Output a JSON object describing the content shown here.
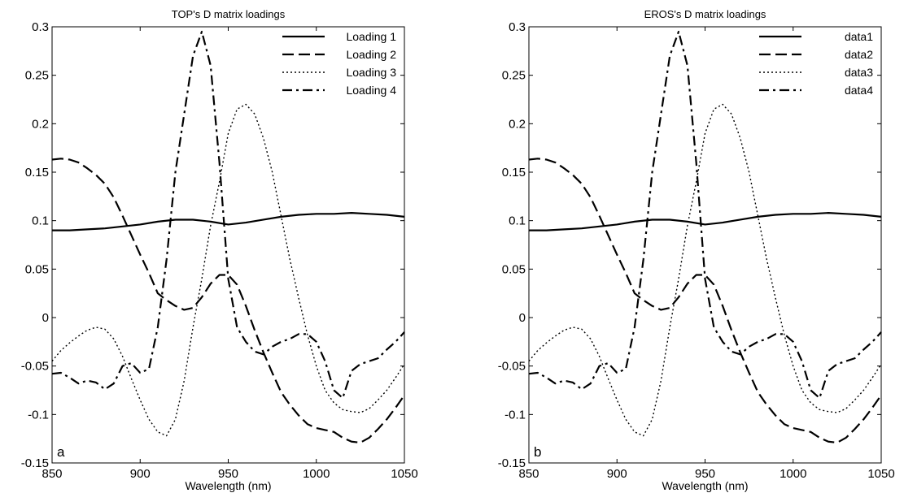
{
  "chart_data": [
    {
      "type": "line",
      "title": "TOP's D matrix loadings",
      "xlabel": "Wavelength (nm)",
      "ylabel": "",
      "panel_label": "a",
      "xlim": [
        850,
        1050
      ],
      "ylim": [
        -0.15,
        0.3
      ],
      "xticks": [
        "850",
        "900",
        "950",
        "1000",
        "1050"
      ],
      "yticks": [
        "-0.15",
        "-0.1",
        "-0.05",
        "0",
        "0.05",
        "0.1",
        "0.15",
        "0.2",
        "0.25",
        "0.3"
      ],
      "grid": false,
      "legend_position": "top-right",
      "series": [
        {
          "name": "Loading 1",
          "style": "solid",
          "x": [
            850,
            860,
            870,
            880,
            890,
            900,
            910,
            920,
            930,
            940,
            950,
            960,
            970,
            980,
            990,
            1000,
            1010,
            1020,
            1030,
            1040,
            1050
          ],
          "y": [
            0.09,
            0.09,
            0.091,
            0.092,
            0.094,
            0.096,
            0.099,
            0.101,
            0.101,
            0.099,
            0.096,
            0.098,
            0.101,
            0.104,
            0.106,
            0.107,
            0.107,
            0.108,
            0.107,
            0.106,
            0.104
          ]
        },
        {
          "name": "Loading 2",
          "style": "dashed",
          "x": [
            850,
            855,
            860,
            865,
            870,
            875,
            880,
            885,
            890,
            895,
            900,
            905,
            910,
            915,
            920,
            925,
            930,
            935,
            940,
            945,
            950,
            955,
            960,
            965,
            970,
            975,
            980,
            985,
            990,
            995,
            1000,
            1005,
            1010,
            1015,
            1020,
            1025,
            1030,
            1035,
            1040,
            1045,
            1050
          ],
          "y": [
            0.163,
            0.164,
            0.163,
            0.16,
            0.154,
            0.147,
            0.138,
            0.124,
            0.105,
            0.085,
            0.065,
            0.046,
            0.025,
            0.018,
            0.012,
            0.008,
            0.01,
            0.021,
            0.035,
            0.044,
            0.044,
            0.034,
            0.012,
            -0.013,
            -0.036,
            -0.057,
            -0.077,
            -0.09,
            -0.101,
            -0.11,
            -0.114,
            -0.116,
            -0.118,
            -0.124,
            -0.128,
            -0.129,
            -0.124,
            -0.115,
            -0.105,
            -0.093,
            -0.08
          ]
        },
        {
          "name": "Loading 3",
          "style": "dotted",
          "x": [
            850,
            855,
            860,
            865,
            870,
            875,
            880,
            885,
            890,
            895,
            900,
            905,
            910,
            915,
            920,
            925,
            930,
            935,
            940,
            945,
            950,
            955,
            960,
            965,
            970,
            975,
            980,
            985,
            990,
            995,
            1000,
            1005,
            1010,
            1015,
            1020,
            1025,
            1030,
            1035,
            1040,
            1045,
            1050
          ],
          "y": [
            -0.045,
            -0.034,
            -0.026,
            -0.019,
            -0.013,
            -0.01,
            -0.012,
            -0.022,
            -0.04,
            -0.063,
            -0.085,
            -0.105,
            -0.118,
            -0.122,
            -0.105,
            -0.065,
            -0.01,
            0.04,
            0.095,
            0.14,
            0.19,
            0.215,
            0.22,
            0.21,
            0.185,
            0.15,
            0.105,
            0.06,
            0.02,
            -0.018,
            -0.05,
            -0.075,
            -0.088,
            -0.095,
            -0.097,
            -0.098,
            -0.094,
            -0.085,
            -0.075,
            -0.062,
            -0.048
          ]
        },
        {
          "name": "Loading 4",
          "style": "dashdot",
          "x": [
            850,
            855,
            860,
            865,
            870,
            875,
            880,
            885,
            890,
            895,
            900,
            905,
            910,
            915,
            920,
            925,
            930,
            935,
            940,
            945,
            950,
            955,
            960,
            965,
            970,
            975,
            980,
            985,
            990,
            995,
            1000,
            1005,
            1010,
            1015,
            1020,
            1025,
            1030,
            1035,
            1040,
            1045,
            1050
          ],
          "y": [
            -0.058,
            -0.057,
            -0.062,
            -0.068,
            -0.065,
            -0.067,
            -0.074,
            -0.068,
            -0.05,
            -0.047,
            -0.057,
            -0.053,
            -0.01,
            0.06,
            0.15,
            0.21,
            0.27,
            0.295,
            0.26,
            0.16,
            0.04,
            -0.01,
            -0.025,
            -0.035,
            -0.038,
            -0.03,
            -0.025,
            -0.022,
            -0.017,
            -0.017,
            -0.025,
            -0.045,
            -0.075,
            -0.083,
            -0.055,
            -0.048,
            -0.045,
            -0.042,
            -0.033,
            -0.025,
            -0.015
          ]
        }
      ]
    },
    {
      "type": "line",
      "title": "EROS's D matrix loadings",
      "xlabel": "Wavelength (nm)",
      "ylabel": "",
      "panel_label": "b",
      "xlim": [
        850,
        1050
      ],
      "ylim": [
        -0.15,
        0.3
      ],
      "xticks": [
        "850",
        "900",
        "950",
        "1000",
        "1050"
      ],
      "yticks": [
        "-0.15",
        "-0.1",
        "-0.05",
        "0",
        "0.05",
        "0.1",
        "0.15",
        "0.2",
        "0.25",
        "0.3"
      ],
      "grid": false,
      "legend_position": "top-right",
      "series": [
        {
          "name": "data1",
          "style": "solid",
          "x": [
            850,
            860,
            870,
            880,
            890,
            900,
            910,
            920,
            930,
            940,
            950,
            960,
            970,
            980,
            990,
            1000,
            1010,
            1020,
            1030,
            1040,
            1050
          ],
          "y": [
            0.09,
            0.09,
            0.091,
            0.092,
            0.094,
            0.096,
            0.099,
            0.101,
            0.101,
            0.099,
            0.096,
            0.098,
            0.101,
            0.104,
            0.106,
            0.107,
            0.107,
            0.108,
            0.107,
            0.106,
            0.104
          ]
        },
        {
          "name": "data2",
          "style": "dashed",
          "x": [
            850,
            855,
            860,
            865,
            870,
            875,
            880,
            885,
            890,
            895,
            900,
            905,
            910,
            915,
            920,
            925,
            930,
            935,
            940,
            945,
            950,
            955,
            960,
            965,
            970,
            975,
            980,
            985,
            990,
            995,
            1000,
            1005,
            1010,
            1015,
            1020,
            1025,
            1030,
            1035,
            1040,
            1045,
            1050
          ],
          "y": [
            0.163,
            0.164,
            0.163,
            0.16,
            0.154,
            0.147,
            0.138,
            0.124,
            0.105,
            0.085,
            0.065,
            0.046,
            0.025,
            0.018,
            0.012,
            0.008,
            0.01,
            0.021,
            0.035,
            0.044,
            0.044,
            0.034,
            0.012,
            -0.013,
            -0.036,
            -0.057,
            -0.077,
            -0.09,
            -0.101,
            -0.11,
            -0.114,
            -0.116,
            -0.118,
            -0.124,
            -0.128,
            -0.129,
            -0.124,
            -0.115,
            -0.105,
            -0.093,
            -0.08
          ]
        },
        {
          "name": "data3",
          "style": "dotted",
          "x": [
            850,
            855,
            860,
            865,
            870,
            875,
            880,
            885,
            890,
            895,
            900,
            905,
            910,
            915,
            920,
            925,
            930,
            935,
            940,
            945,
            950,
            955,
            960,
            965,
            970,
            975,
            980,
            985,
            990,
            995,
            1000,
            1005,
            1010,
            1015,
            1020,
            1025,
            1030,
            1035,
            1040,
            1045,
            1050
          ],
          "y": [
            -0.045,
            -0.034,
            -0.026,
            -0.019,
            -0.013,
            -0.01,
            -0.012,
            -0.022,
            -0.04,
            -0.063,
            -0.085,
            -0.105,
            -0.118,
            -0.122,
            -0.105,
            -0.065,
            -0.01,
            0.04,
            0.095,
            0.14,
            0.19,
            0.215,
            0.22,
            0.21,
            0.185,
            0.15,
            0.105,
            0.06,
            0.02,
            -0.018,
            -0.05,
            -0.075,
            -0.088,
            -0.095,
            -0.097,
            -0.098,
            -0.094,
            -0.085,
            -0.075,
            -0.062,
            -0.048
          ]
        },
        {
          "name": "data4",
          "style": "dashdot",
          "x": [
            850,
            855,
            860,
            865,
            870,
            875,
            880,
            885,
            890,
            895,
            900,
            905,
            910,
            915,
            920,
            925,
            930,
            935,
            940,
            945,
            950,
            955,
            960,
            965,
            970,
            975,
            980,
            985,
            990,
            995,
            1000,
            1005,
            1010,
            1015,
            1020,
            1025,
            1030,
            1035,
            1040,
            1045,
            1050
          ],
          "y": [
            -0.058,
            -0.057,
            -0.062,
            -0.068,
            -0.065,
            -0.067,
            -0.074,
            -0.068,
            -0.05,
            -0.047,
            -0.057,
            -0.053,
            -0.01,
            0.06,
            0.15,
            0.21,
            0.27,
            0.295,
            0.26,
            0.16,
            0.04,
            -0.01,
            -0.025,
            -0.035,
            -0.038,
            -0.03,
            -0.025,
            -0.022,
            -0.017,
            -0.017,
            -0.025,
            -0.045,
            -0.075,
            -0.083,
            -0.055,
            -0.048,
            -0.045,
            -0.042,
            -0.033,
            -0.025,
            -0.015
          ]
        }
      ]
    }
  ]
}
